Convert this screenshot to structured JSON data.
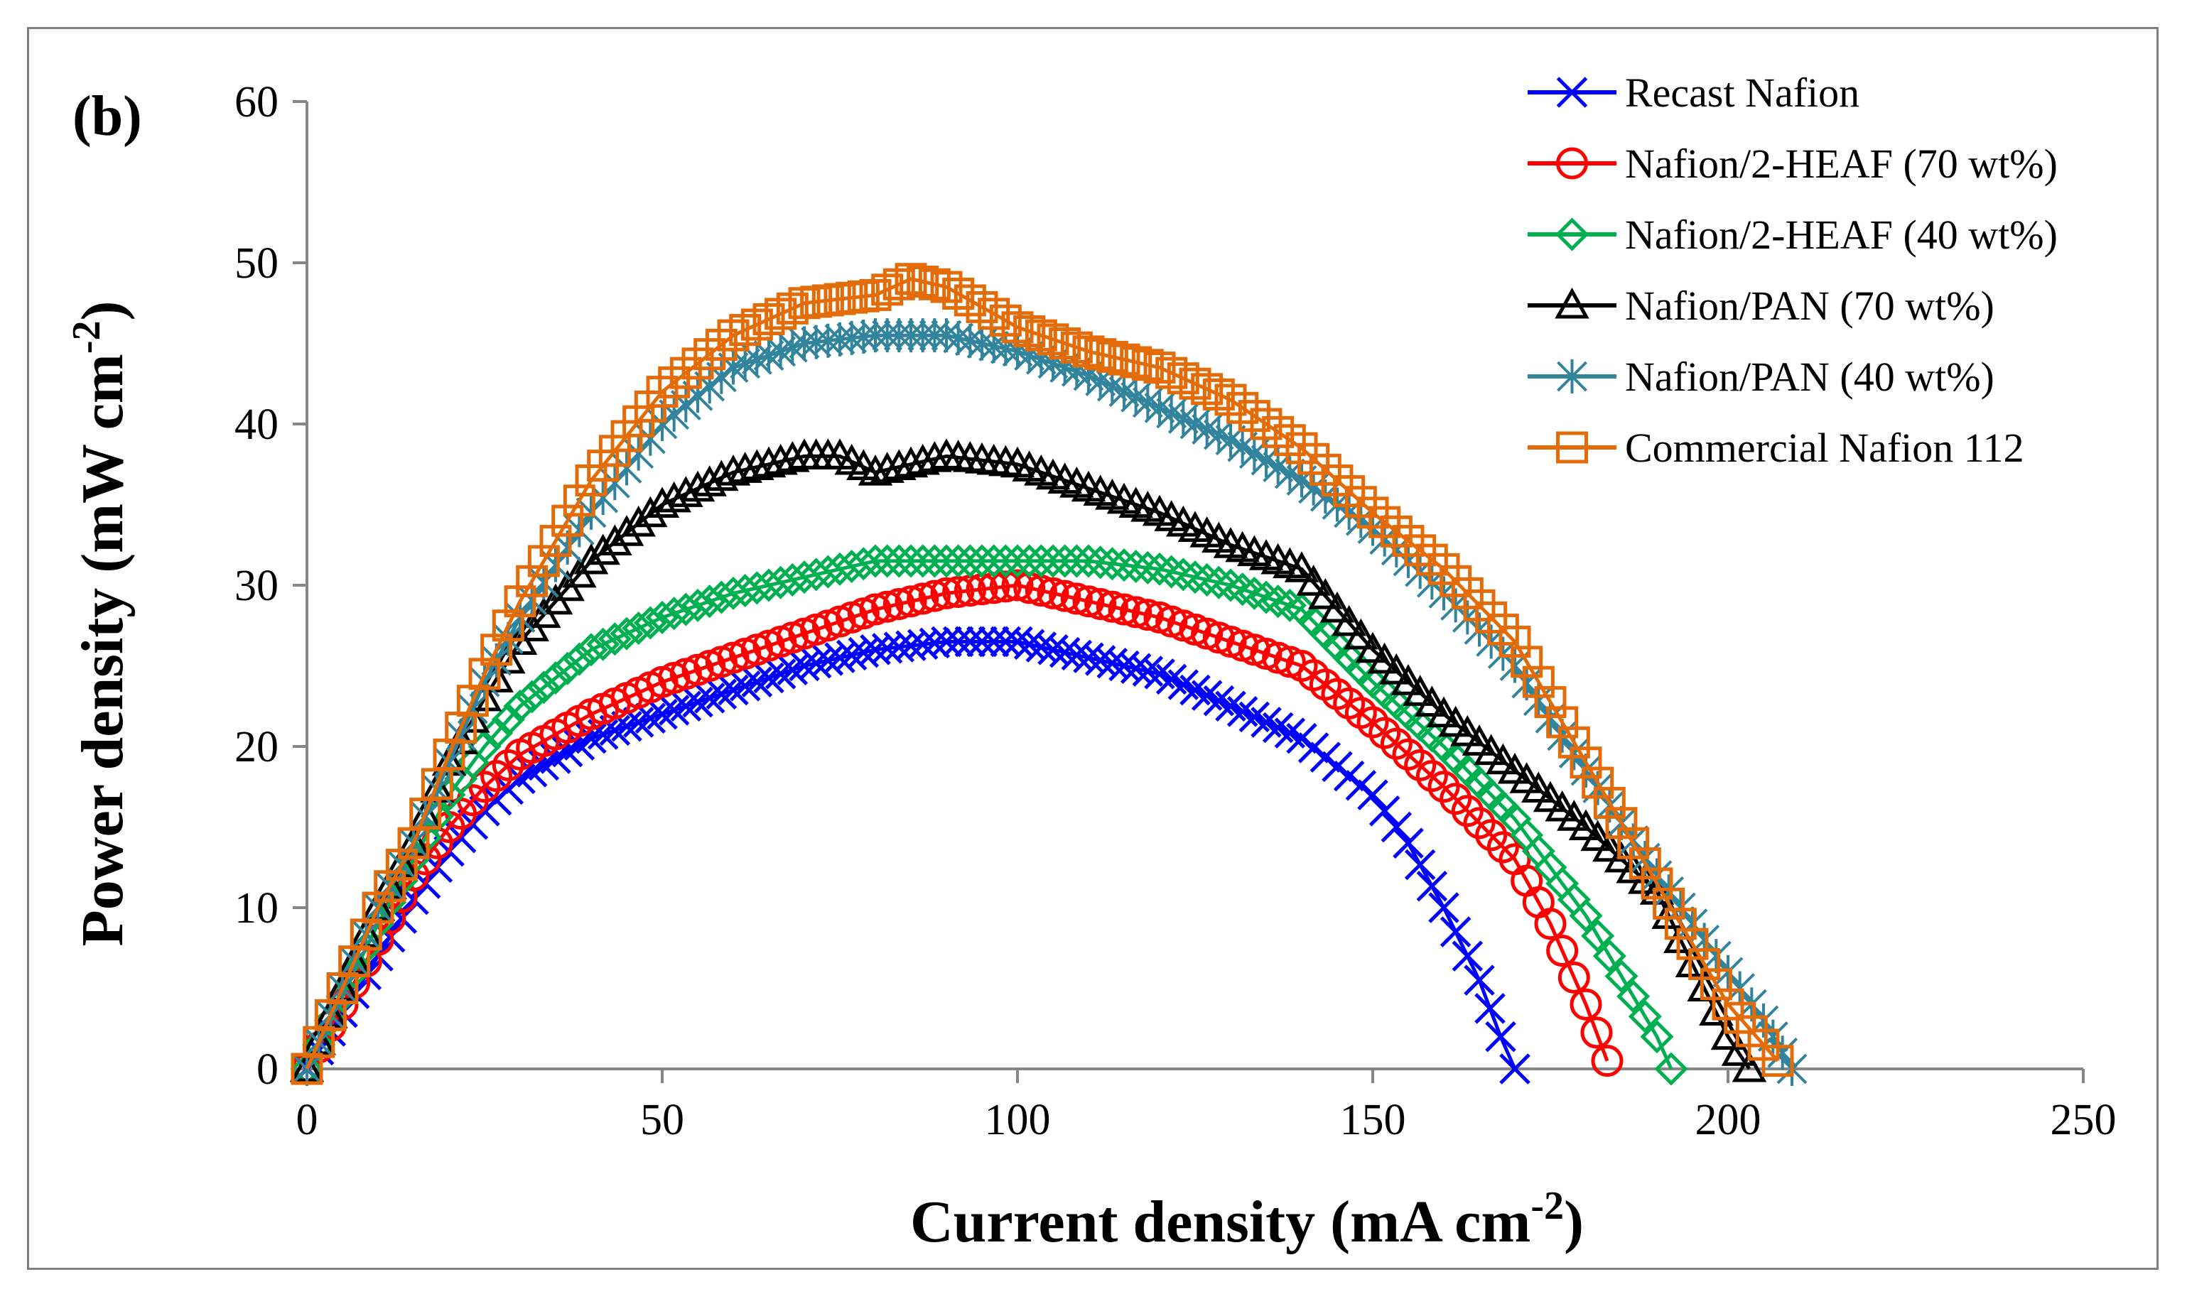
{
  "chart_data": {
    "type": "scatter",
    "panel_label": "(b)",
    "xlabel": "Current density (mA cm",
    "xlabel_sup": "-2",
    "xlabel_tail": ")",
    "ylabel": "Power density (mW cm",
    "ylabel_sup": "-2",
    "ylabel_tail": ")",
    "xlim": [
      0,
      250
    ],
    "ylim": [
      0,
      60
    ],
    "xticks": [
      0,
      50,
      100,
      150,
      200,
      250
    ],
    "yticks": [
      0,
      10,
      20,
      30,
      40,
      50,
      60
    ],
    "grid": false,
    "legend_position": "top-right",
    "series": [
      {
        "name": "Recast Nafion",
        "color": "#0000ff",
        "marker": "x",
        "x": [
          0,
          5,
          10,
          15,
          20,
          25,
          30,
          40,
          50,
          60,
          70,
          80,
          90,
          100,
          110,
          120,
          130,
          140,
          150,
          155,
          160,
          165,
          168,
          170
        ],
        "y": [
          0,
          3.5,
          7,
          10.5,
          13.5,
          16,
          18,
          20.5,
          22,
          23.5,
          25,
          26,
          26.5,
          26.5,
          25.5,
          24.5,
          22.5,
          20.5,
          17,
          14,
          10,
          5.5,
          2,
          0
        ]
      },
      {
        "name": "Nafion/2-HEAF (70 wt%)",
        "color": "#ff0000",
        "marker": "circle",
        "x": [
          0,
          5,
          10,
          15,
          20,
          25,
          30,
          40,
          50,
          60,
          70,
          80,
          90,
          100,
          110,
          120,
          130,
          140,
          150,
          160,
          170,
          175,
          180,
          183
        ],
        "y": [
          0,
          4,
          8,
          12,
          15,
          17.5,
          19.5,
          22,
          24,
          25.5,
          27,
          28.5,
          29.5,
          30,
          29,
          28,
          26.5,
          25,
          21.5,
          17.5,
          13,
          9,
          4,
          0.5
        ]
      },
      {
        "name": "Nafion/2-HEAF (40 wt%)",
        "color": "#00b050",
        "marker": "diamond",
        "x": [
          0,
          5,
          10,
          15,
          20,
          25,
          30,
          40,
          50,
          60,
          70,
          80,
          90,
          100,
          110,
          120,
          130,
          140,
          150,
          160,
          170,
          180,
          190,
          192
        ],
        "y": [
          0,
          4.5,
          9,
          13,
          17,
          20,
          22.5,
          26,
          28,
          29.5,
          30.5,
          31.5,
          31.5,
          31.5,
          31.5,
          31,
          30,
          28.5,
          24,
          20,
          15.5,
          9.5,
          2,
          0
        ]
      },
      {
        "name": "Nafion/PAN (70 wt%)",
        "color": "#000000",
        "marker": "triangle",
        "x": [
          0,
          5,
          10,
          15,
          20,
          25,
          30,
          40,
          50,
          60,
          70,
          75,
          80,
          90,
          100,
          110,
          120,
          130,
          140,
          150,
          160,
          170,
          180,
          190,
          200,
          203
        ],
        "y": [
          0,
          5,
          10,
          14,
          19,
          23,
          26.5,
          31.5,
          35,
          37,
          38,
          38,
          37,
          38,
          37.5,
          36,
          34.5,
          32.5,
          31,
          26,
          22,
          18.5,
          15,
          11,
          2,
          0
        ]
      },
      {
        "name": "Nafion/PAN (40 wt%)",
        "color": "#31849b",
        "marker": "star",
        "x": [
          0,
          5,
          10,
          15,
          20,
          25,
          30,
          40,
          50,
          60,
          70,
          80,
          90,
          100,
          110,
          120,
          130,
          140,
          150,
          160,
          170,
          180,
          190,
          200,
          205,
          209
        ],
        "y": [
          0,
          5,
          10,
          14,
          19,
          24,
          28,
          34.5,
          40,
          43.5,
          45,
          45.5,
          45.5,
          44.5,
          43,
          41,
          39,
          36.5,
          33.5,
          29.5,
          25,
          18.5,
          12,
          6,
          3,
          0
        ]
      },
      {
        "name": "Commercial Nafion 112",
        "color": "#e36c09",
        "marker": "square",
        "x": [
          0,
          5,
          10,
          15,
          20,
          25,
          30,
          40,
          50,
          60,
          70,
          80,
          85,
          90,
          100,
          110,
          120,
          130,
          140,
          150,
          160,
          170,
          180,
          190,
          200,
          205,
          207
        ],
        "y": [
          0,
          5,
          10,
          14,
          19.5,
          24.5,
          29,
          36.5,
          42,
          45.5,
          47.5,
          48,
          49,
          48.5,
          46,
          44.5,
          43.5,
          41.5,
          38.5,
          34.5,
          31,
          26.5,
          19,
          11.5,
          4,
          1.5,
          0.5
        ]
      }
    ]
  }
}
